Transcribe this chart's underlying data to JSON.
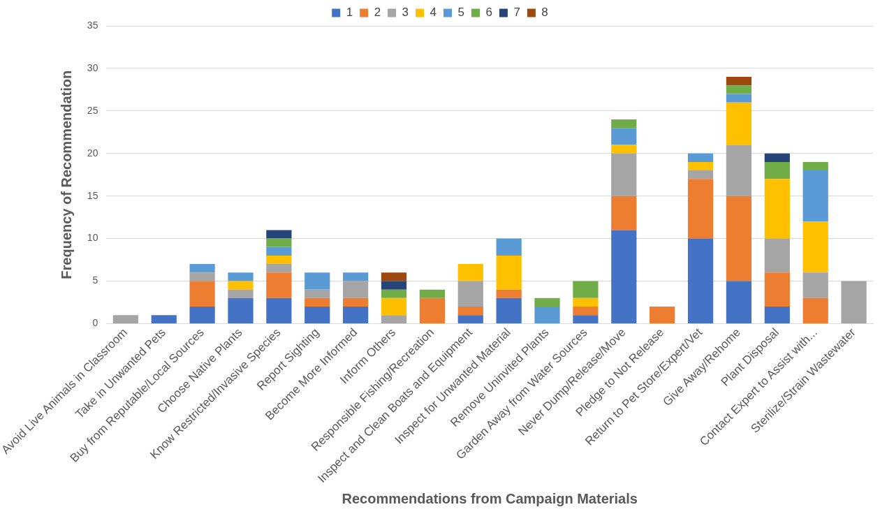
{
  "chart_data": {
    "type": "bar",
    "stacked": true,
    "xlabel": "Recommendations from Campaign Materials",
    "ylabel": "Frequency of Recommendation",
    "categories": [
      "Avoid Live Animals in Classroom",
      "Take in Unwanted Pets",
      "Buy from Reputable/Local Sources",
      "Choose Native Plants",
      "Know Restricted/Invasive Species",
      "Report Sighting",
      "Become More Informed",
      "Inform Others",
      "Responsible Fishing/Recreation",
      "Inspect and Clean Boats and Equipment",
      "Inspect for Unwanted Material",
      "Remove Uninvited Plants",
      "Garden Away from Water Sources",
      "Never Dump/Release/Move",
      "Pledge to Not Release",
      "Return to Pet Store/Expert/Vet",
      "Give Away/Rehome",
      "Plant Disposal",
      "Contact Expert to Assist with...",
      "Sterilize/Strain Wastewater"
    ],
    "series": [
      {
        "name": "1",
        "color": "#4472c4",
        "values": [
          0,
          1,
          2,
          3,
          3,
          2,
          2,
          0,
          0,
          1,
          3,
          0,
          1,
          11,
          0,
          10,
          5,
          2,
          0,
          0
        ]
      },
      {
        "name": "2",
        "color": "#ed7d31",
        "values": [
          0,
          0,
          3,
          0,
          3,
          1,
          1,
          0,
          3,
          1,
          1,
          0,
          1,
          4,
          2,
          7,
          10,
          4,
          3,
          0
        ]
      },
      {
        "name": "3",
        "color": "#a5a5a5",
        "values": [
          1,
          0,
          1,
          1,
          1,
          1,
          2,
          1,
          0,
          3,
          0,
          0,
          0,
          5,
          0,
          1,
          6,
          4,
          3,
          5
        ]
      },
      {
        "name": "4",
        "color": "#ffc000",
        "values": [
          0,
          0,
          0,
          1,
          1,
          0,
          0,
          2,
          0,
          2,
          4,
          0,
          1,
          1,
          0,
          1,
          5,
          7,
          6,
          0
        ]
      },
      {
        "name": "5",
        "color": "#5b9bd5",
        "values": [
          0,
          0,
          1,
          1,
          1,
          2,
          1,
          0,
          0,
          0,
          2,
          2,
          0,
          2,
          0,
          1,
          1,
          0,
          6,
          0
        ]
      },
      {
        "name": "6",
        "color": "#70ad47",
        "values": [
          0,
          0,
          0,
          0,
          1,
          0,
          0,
          1,
          1,
          0,
          0,
          1,
          2,
          1,
          0,
          0,
          1,
          2,
          1,
          0
        ]
      },
      {
        "name": "7",
        "color": "#264478",
        "values": [
          0,
          0,
          0,
          0,
          1,
          0,
          0,
          1,
          0,
          0,
          0,
          0,
          0,
          0,
          0,
          0,
          0,
          1,
          0,
          0
        ]
      },
      {
        "name": "8",
        "color": "#9e480e",
        "values": [
          0,
          0,
          0,
          0,
          0,
          0,
          0,
          1,
          0,
          0,
          0,
          0,
          0,
          0,
          0,
          0,
          1,
          0,
          0,
          0
        ]
      }
    ],
    "ylim": [
      0,
      35
    ],
    "yticks": [
      0,
      5,
      10,
      15,
      20,
      25,
      30,
      35
    ],
    "grid": "y",
    "legend": "top"
  }
}
